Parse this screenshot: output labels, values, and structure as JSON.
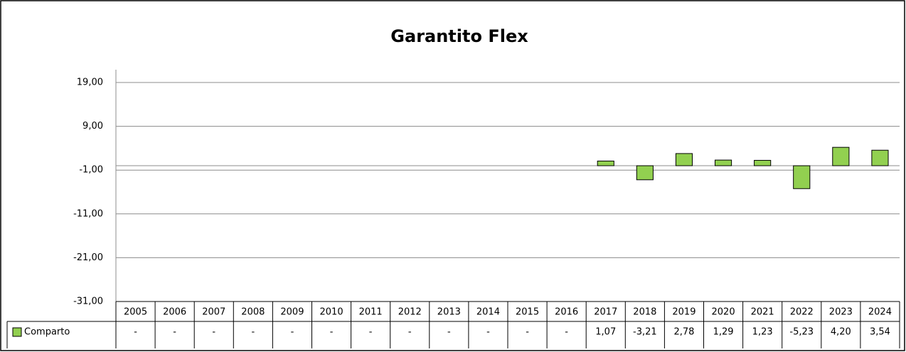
{
  "chart_data": {
    "type": "bar",
    "title": "Garantito Flex",
    "categories": [
      "2005",
      "2006",
      "2007",
      "2008",
      "2009",
      "2010",
      "2011",
      "2012",
      "2013",
      "2014",
      "2015",
      "2016",
      "2017",
      "2018",
      "2019",
      "2020",
      "2021",
      "2022",
      "2023",
      "2024"
    ],
    "series": [
      {
        "name": "Comparto",
        "color": "#92d050",
        "values": [
          null,
          null,
          null,
          null,
          null,
          null,
          null,
          null,
          null,
          null,
          null,
          null,
          1.07,
          -3.21,
          2.78,
          1.29,
          1.23,
          -5.23,
          4.2,
          3.54
        ],
        "value_labels": [
          "-",
          "-",
          "-",
          "-",
          "-",
          "-",
          "-",
          "-",
          "-",
          "-",
          "-",
          "-",
          "1,07",
          "-3,21",
          "2,78",
          "1,29",
          "1,23",
          "-5,23",
          "4,20",
          "3,54"
        ]
      }
    ],
    "ylim": [
      -31,
      19
    ],
    "yticks": [
      {
        "value": -31,
        "label": "-31,00"
      },
      {
        "value": -21,
        "label": "-21,00"
      },
      {
        "value": -11,
        "label": "-11,00"
      },
      {
        "value": -1,
        "label": "-1,00"
      },
      {
        "value": 9,
        "label": "9,00"
      },
      {
        "value": 19,
        "label": "19,00"
      }
    ],
    "grid": true
  }
}
